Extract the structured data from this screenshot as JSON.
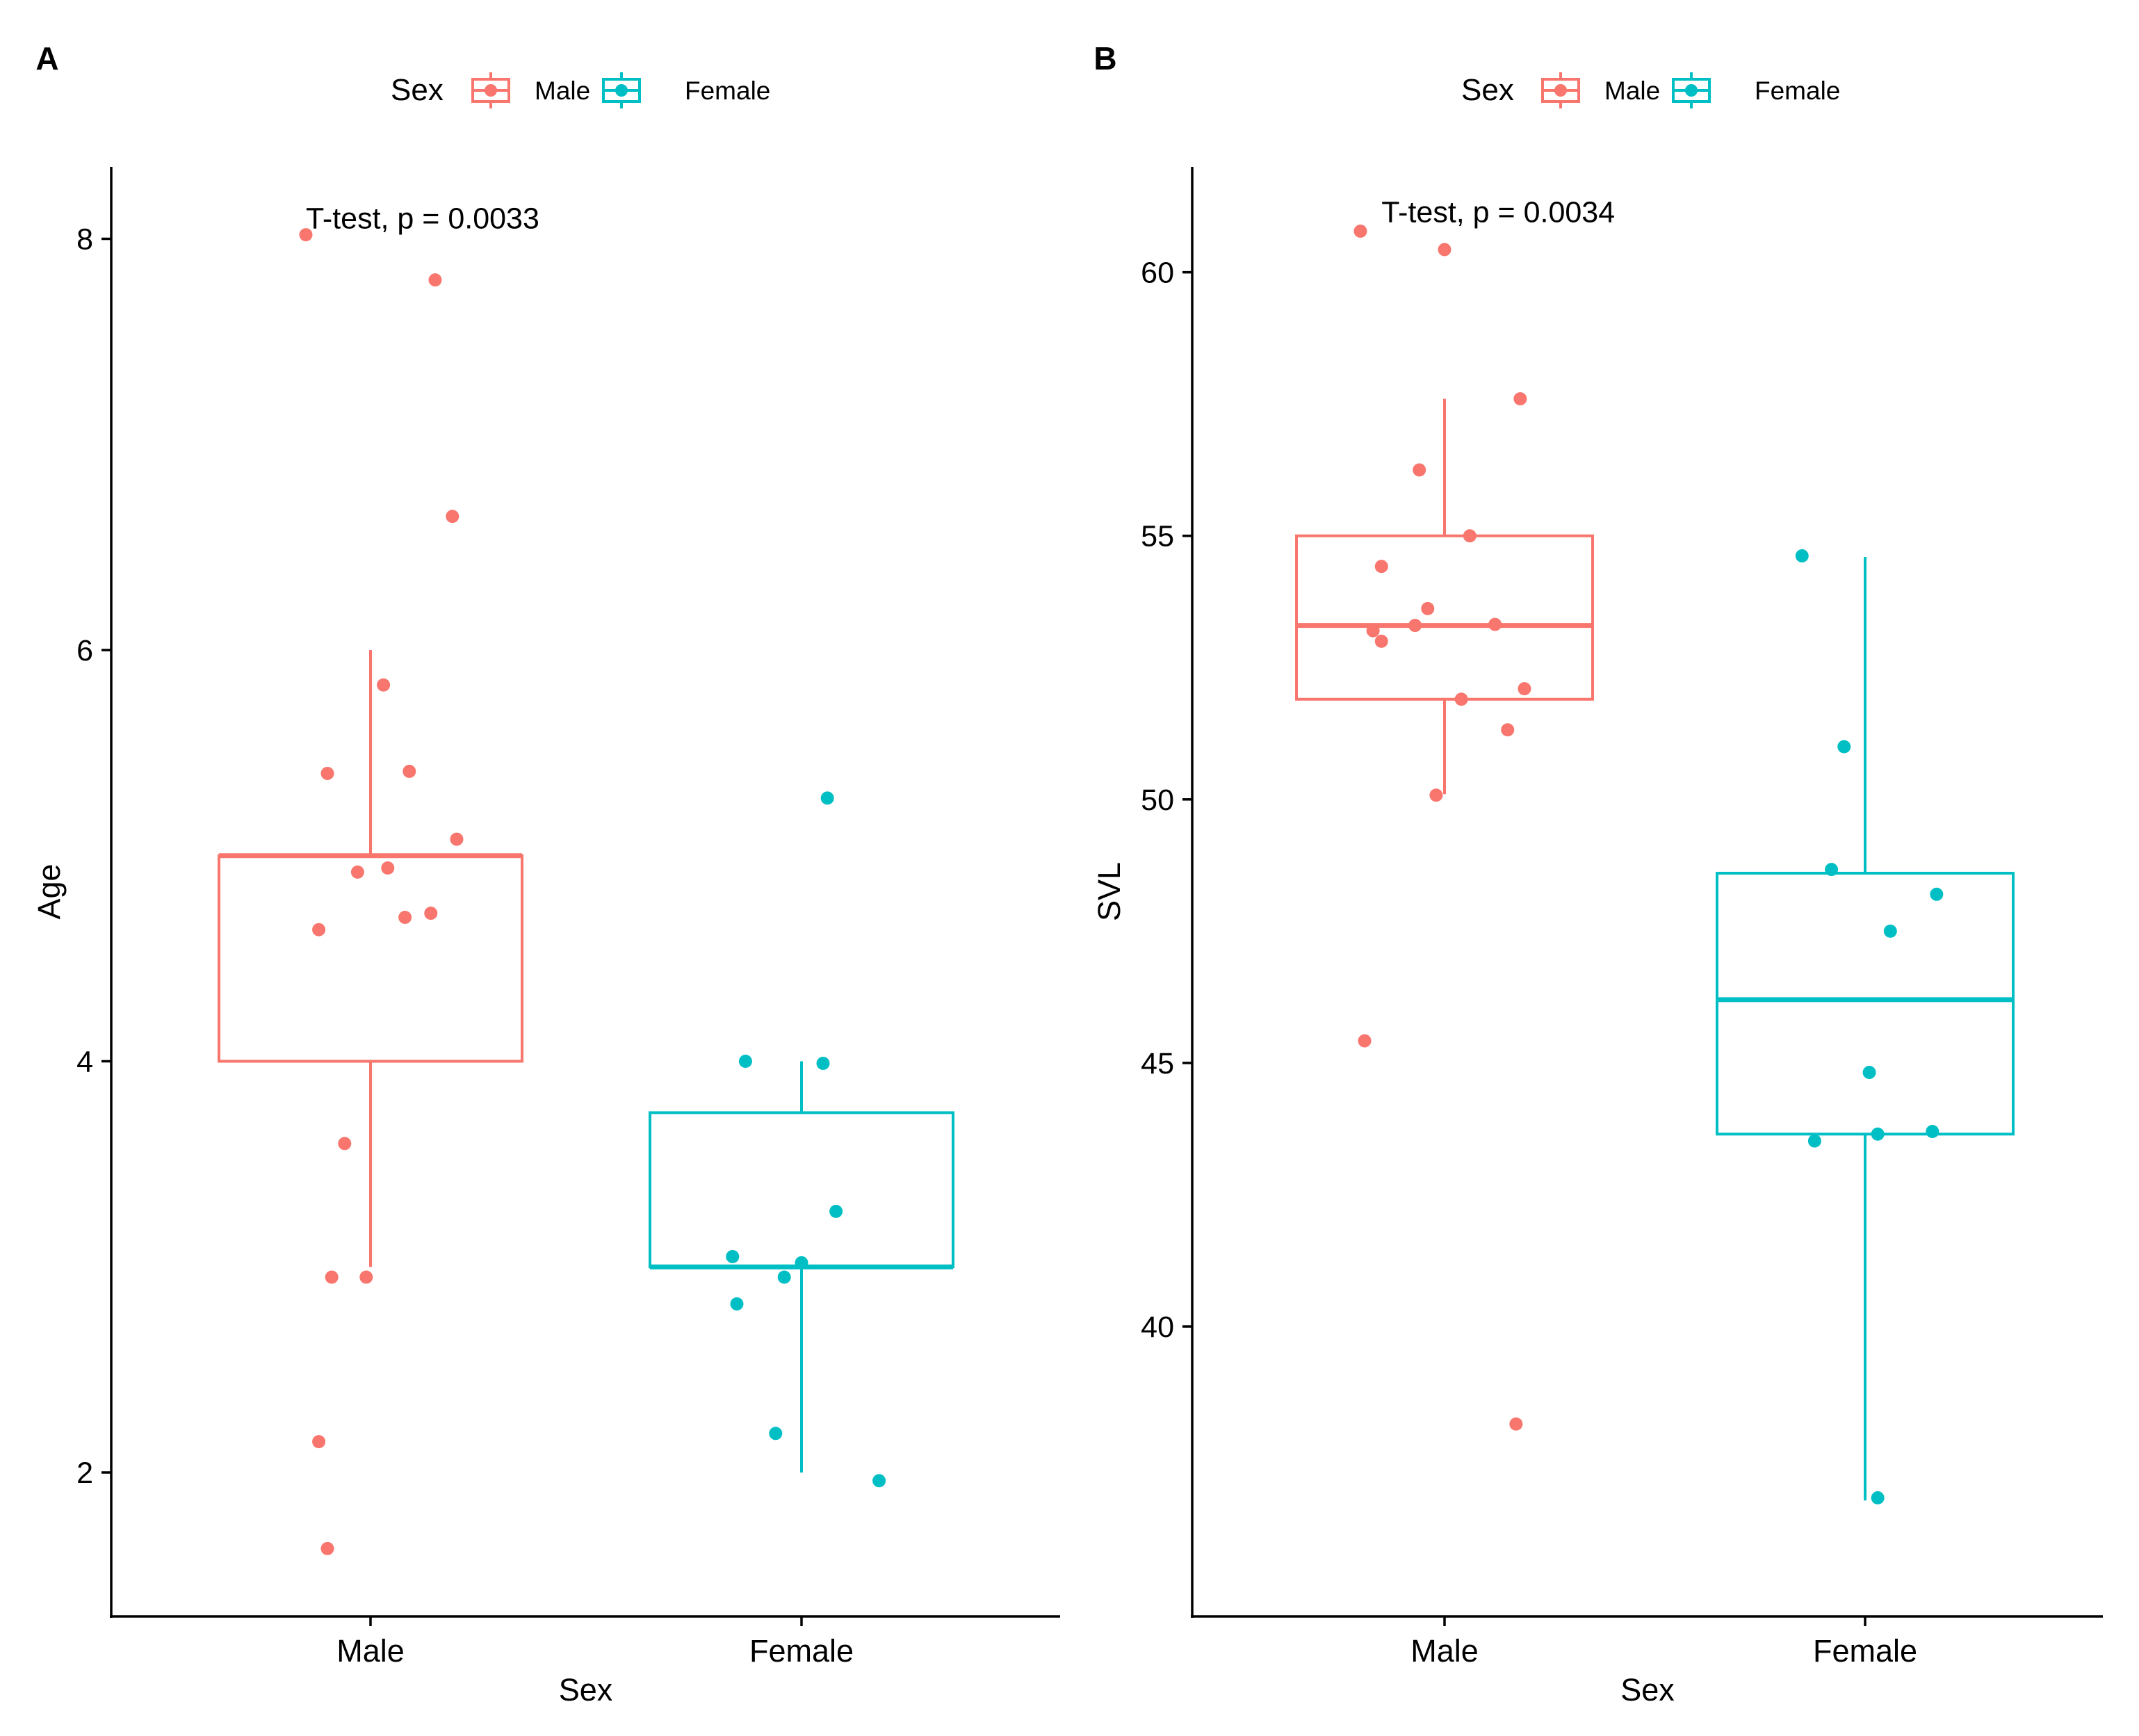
{
  "colors": {
    "male": "#F8766D",
    "female": "#00BFC4",
    "axis": "#000000"
  },
  "chart_data": [
    {
      "panel_label": "A",
      "type": "boxplot",
      "legend": {
        "title": "Sex",
        "entries": [
          "Male",
          "Female"
        ],
        "position": "top"
      },
      "xlabel": "Sex",
      "ylabel": "Age",
      "categories": [
        "Male",
        "Female"
      ],
      "ylim": [
        1.3,
        8.35
      ],
      "yticks": [
        2,
        4,
        6,
        8
      ],
      "annotation": {
        "text": "T-test, p = 0.0033",
        "x_category": 0.85,
        "y": 8.05
      },
      "boxes": [
        {
          "name": "Male",
          "q1": 4.0,
          "median": 5.0,
          "q3": 5.0,
          "whisker_low": 3.0,
          "whisker_high": 6.0
        },
        {
          "name": "Female",
          "q1": 3.0,
          "median": 3.0,
          "q3": 3.75,
          "whisker_low": 2.0,
          "whisker_high": 4.0
        }
      ],
      "points": [
        {
          "group": "Male",
          "jitter": -0.15,
          "value": 8.02
        },
        {
          "group": "Male",
          "jitter": 0.15,
          "value": 7.8
        },
        {
          "group": "Male",
          "jitter": 0.19,
          "value": 6.65
        },
        {
          "group": "Male",
          "jitter": 0.03,
          "value": 5.83
        },
        {
          "group": "Male",
          "jitter": -0.1,
          "value": 5.4
        },
        {
          "group": "Male",
          "jitter": 0.09,
          "value": 5.41
        },
        {
          "group": "Male",
          "jitter": 0.2,
          "value": 5.08
        },
        {
          "group": "Male",
          "jitter": -0.03,
          "value": 4.92
        },
        {
          "group": "Male",
          "jitter": 0.04,
          "value": 4.94
        },
        {
          "group": "Male",
          "jitter": 0.08,
          "value": 4.7
        },
        {
          "group": "Male",
          "jitter": 0.14,
          "value": 4.72
        },
        {
          "group": "Male",
          "jitter": -0.12,
          "value": 4.64
        },
        {
          "group": "Male",
          "jitter": -0.06,
          "value": 3.6
        },
        {
          "group": "Male",
          "jitter": -0.09,
          "value": 2.95
        },
        {
          "group": "Male",
          "jitter": -0.01,
          "value": 2.95
        },
        {
          "group": "Male",
          "jitter": -0.12,
          "value": 2.15
        },
        {
          "group": "Male",
          "jitter": -0.1,
          "value": 1.63
        },
        {
          "group": "Female",
          "jitter": 0.06,
          "value": 5.28
        },
        {
          "group": "Female",
          "jitter": -0.13,
          "value": 4.0
        },
        {
          "group": "Female",
          "jitter": 0.05,
          "value": 3.99
        },
        {
          "group": "Female",
          "jitter": 0.08,
          "value": 3.27
        },
        {
          "group": "Female",
          "jitter": -0.16,
          "value": 3.05
        },
        {
          "group": "Female",
          "jitter": 0.0,
          "value": 3.02
        },
        {
          "group": "Female",
          "jitter": -0.04,
          "value": 2.95
        },
        {
          "group": "Female",
          "jitter": -0.15,
          "value": 2.82
        },
        {
          "group": "Female",
          "jitter": -0.06,
          "value": 2.19
        },
        {
          "group": "Female",
          "jitter": 0.18,
          "value": 1.96
        }
      ]
    },
    {
      "panel_label": "B",
      "type": "boxplot",
      "legend": {
        "title": "Sex",
        "entries": [
          "Male",
          "Female"
        ],
        "position": "top"
      },
      "xlabel": "Sex",
      "ylabel": "SVL",
      "categories": [
        "Male",
        "Female"
      ],
      "ylim": [
        34.5,
        62.0
      ],
      "yticks": [
        40,
        45,
        50,
        55,
        60
      ],
      "annotation": {
        "text": "T-test, p = 0.0034",
        "x_category": 0.85,
        "y": 60.95
      },
      "boxes": [
        {
          "name": "Male",
          "q1": 51.9,
          "median": 53.3,
          "q3": 55.0,
          "whisker_low": 50.1,
          "whisker_high": 57.6
        },
        {
          "name": "Female",
          "q1": 43.65,
          "median": 46.2,
          "q3": 48.6,
          "whisker_low": 36.7,
          "whisker_high": 54.6
        }
      ],
      "points": [
        {
          "group": "Male",
          "jitter": -0.2,
          "value": 60.78
        },
        {
          "group": "Male",
          "jitter": 0.0,
          "value": 60.43
        },
        {
          "group": "Male",
          "jitter": 0.18,
          "value": 57.6
        },
        {
          "group": "Male",
          "jitter": -0.06,
          "value": 56.25
        },
        {
          "group": "Male",
          "jitter": 0.06,
          "value": 55.0
        },
        {
          "group": "Male",
          "jitter": -0.15,
          "value": 54.42
        },
        {
          "group": "Male",
          "jitter": -0.04,
          "value": 53.62
        },
        {
          "group": "Male",
          "jitter": -0.07,
          "value": 53.3
        },
        {
          "group": "Male",
          "jitter": 0.12,
          "value": 53.32
        },
        {
          "group": "Male",
          "jitter": -0.17,
          "value": 53.2
        },
        {
          "group": "Male",
          "jitter": -0.15,
          "value": 53.0
        },
        {
          "group": "Male",
          "jitter": 0.19,
          "value": 52.1
        },
        {
          "group": "Male",
          "jitter": 0.04,
          "value": 51.9
        },
        {
          "group": "Male",
          "jitter": 0.15,
          "value": 51.32
        },
        {
          "group": "Male",
          "jitter": -0.02,
          "value": 50.08
        },
        {
          "group": "Male",
          "jitter": -0.19,
          "value": 45.42
        },
        {
          "group": "Male",
          "jitter": 0.17,
          "value": 38.15
        },
        {
          "group": "Female",
          "jitter": -0.15,
          "value": 54.62
        },
        {
          "group": "Female",
          "jitter": -0.05,
          "value": 51.0
        },
        {
          "group": "Female",
          "jitter": -0.08,
          "value": 48.67
        },
        {
          "group": "Female",
          "jitter": 0.17,
          "value": 48.2
        },
        {
          "group": "Female",
          "jitter": 0.06,
          "value": 47.5
        },
        {
          "group": "Female",
          "jitter": 0.01,
          "value": 44.82
        },
        {
          "group": "Female",
          "jitter": 0.16,
          "value": 43.7
        },
        {
          "group": "Female",
          "jitter": 0.03,
          "value": 43.65
        },
        {
          "group": "Female",
          "jitter": -0.12,
          "value": 43.52
        },
        {
          "group": "Female",
          "jitter": 0.03,
          "value": 36.75
        }
      ]
    }
  ]
}
